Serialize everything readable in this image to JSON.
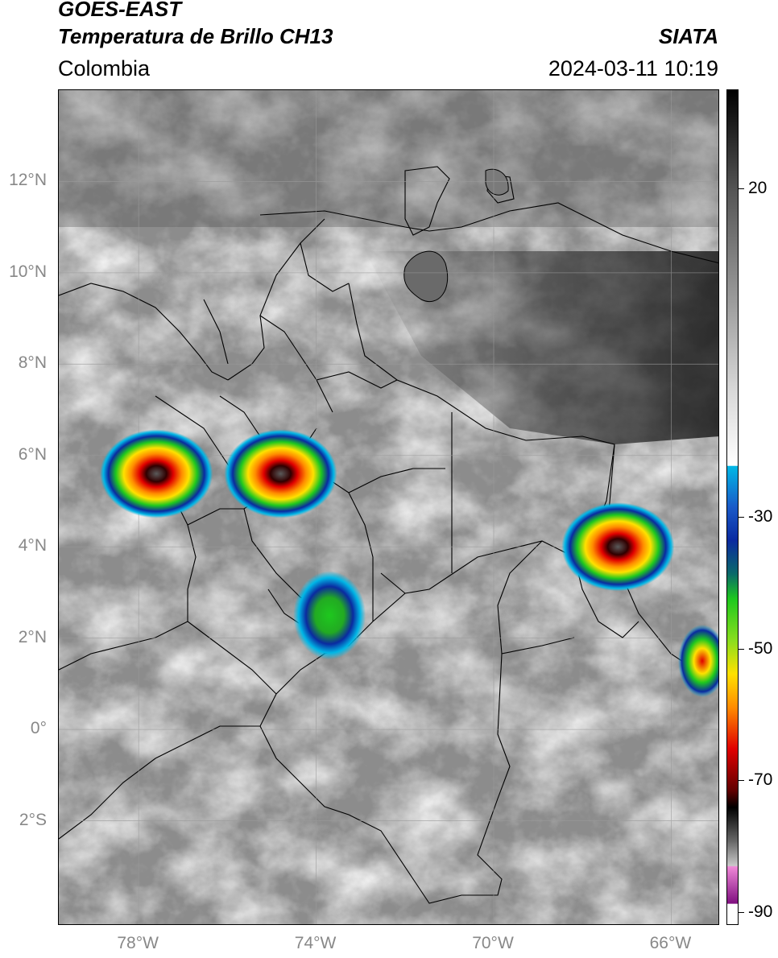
{
  "header": {
    "satellite": "GOES-EAST",
    "product": "Temperatura de Brillo CH13",
    "region": "Colombia",
    "agency": "SIATA",
    "datetime": "2024-03-11 10:19"
  },
  "map": {
    "lat_labels": [
      "12°N",
      "10°N",
      "8°N",
      "6°N",
      "4°N",
      "2°N",
      "0°",
      "2°S"
    ],
    "lon_labels": [
      "78°W",
      "74°W",
      "70°W",
      "66°W"
    ],
    "lon_range": [
      -79.8,
      -64.9
    ],
    "lat_range": [
      -4.3,
      14.0
    ],
    "lat_ticks": [
      12,
      10,
      8,
      6,
      4,
      2,
      0,
      -2
    ],
    "lon_ticks": [
      -78,
      -74,
      -70,
      -66
    ],
    "convective_cells": [
      {
        "lon": -77.6,
        "lat": 5.6,
        "min_temp": -75
      },
      {
        "lon": -74.8,
        "lat": 5.6,
        "min_temp": -72
      },
      {
        "lon": -73.7,
        "lat": 2.5,
        "min_temp": -45
      },
      {
        "lon": -67.2,
        "lat": 4.0,
        "min_temp": -72
      },
      {
        "lon": -65.3,
        "lat": 1.5,
        "min_temp": -55
      }
    ]
  },
  "colorbar": {
    "labels": [
      "20",
      "-30",
      "-50",
      "-70",
      "-90"
    ],
    "values": [
      20,
      -30,
      -50,
      -70,
      -90
    ],
    "range": [
      35,
      -92
    ],
    "colors": {
      "warm_black": "#000000",
      "gray": "#b0b0b0",
      "white": "#ffffff",
      "cyan": "#00b7e6",
      "blue": "#0a2aa0",
      "green": "#1ec81e",
      "yellow": "#ffe100",
      "orange": "#ff8c00",
      "red": "#e00000",
      "dark_red": "#600000",
      "magenta": "#e060c8",
      "purple": "#801080"
    }
  }
}
